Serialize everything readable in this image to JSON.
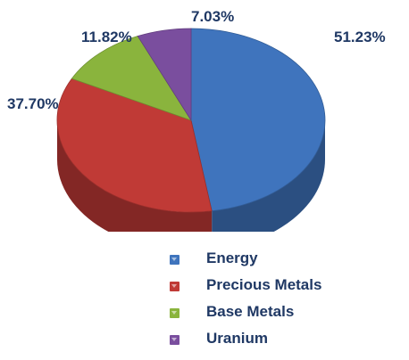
{
  "chart_data": {
    "type": "pie",
    "title": "",
    "slices": [
      {
        "name": "Energy",
        "value": 51.23,
        "label": "51.23%",
        "color": "#3f74bd"
      },
      {
        "name": "Precious Metals",
        "value": 37.7,
        "label": "37.70%",
        "color": "#c03a36"
      },
      {
        "name": "Base Metals",
        "value": 11.82,
        "label": "11.82%",
        "color": "#8ab43d"
      },
      {
        "name": "Uranium",
        "value": 7.03,
        "label": "7.03%",
        "color": "#7a4e9e"
      }
    ],
    "legend_position": "bottom"
  }
}
